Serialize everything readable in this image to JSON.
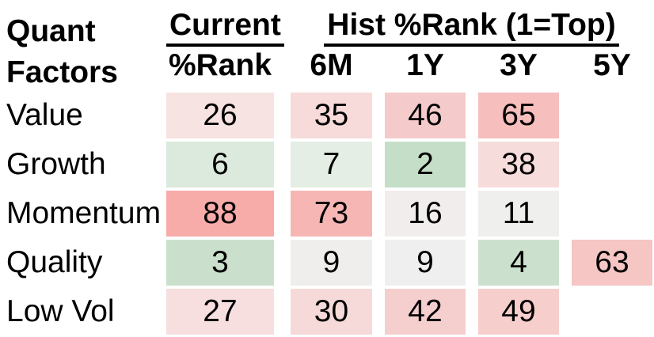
{
  "table": {
    "corner_lines": [
      "Quant",
      "Factors"
    ],
    "current_group_label": "Current",
    "hist_group_label": "Hist %Rank (1=Top)",
    "columns": [
      {
        "id": "current-rank",
        "label": "%Rank"
      },
      {
        "id": "6m",
        "label": "6M"
      },
      {
        "id": "1y",
        "label": "1Y"
      },
      {
        "id": "3y",
        "label": "3Y"
      },
      {
        "id": "5y",
        "label": "5Y"
      }
    ],
    "rows": [
      {
        "id": "value",
        "label": "Value",
        "cells": [
          {
            "value": 26,
            "color": "#F7E3E1"
          },
          {
            "value": 35,
            "color": "#F6DBDA"
          },
          {
            "value": 46,
            "color": "#F4CBCA"
          },
          {
            "value": 65,
            "color": "#F6BEBC"
          },
          null
        ]
      },
      {
        "id": "growth",
        "label": "Growth",
        "cells": [
          {
            "value": 6,
            "color": "#DCEADD"
          },
          {
            "value": 7,
            "color": "#E4EEE4"
          },
          {
            "value": 2,
            "color": "#C5DEC8"
          },
          {
            "value": 38,
            "color": "#F6DCDB"
          },
          null
        ]
      },
      {
        "id": "momentum",
        "label": "Momentum",
        "cells": [
          {
            "value": 88,
            "color": "#F7ACA9"
          },
          {
            "value": 73,
            "color": "#F6B7B4"
          },
          {
            "value": 16,
            "color": "#F1EDEC"
          },
          {
            "value": 11,
            "color": "#EFEFED"
          },
          null
        ]
      },
      {
        "id": "quality",
        "label": "Quality",
        "cells": [
          {
            "value": 3,
            "color": "#CAE0CC"
          },
          {
            "value": 9,
            "color": "#EFEEED"
          },
          {
            "value": 9,
            "color": "#F0EFEF"
          },
          {
            "value": 4,
            "color": "#CBE1CE"
          },
          {
            "value": 63,
            "color": "#F5C6C4"
          }
        ]
      },
      {
        "id": "low-vol",
        "label": "Low Vol",
        "cells": [
          {
            "value": 27,
            "color": "#F6DFDE"
          },
          {
            "value": 30,
            "color": "#F5DAD9"
          },
          {
            "value": 42,
            "color": "#F4CFCE"
          },
          {
            "value": 49,
            "color": "#F6CECB"
          },
          null
        ]
      }
    ]
  },
  "heat_colors": {
    "low_green": "#C5DEC8",
    "mid_neutral": "#F0EFEF",
    "high_red": "#F7ACA9"
  },
  "chart_data": {
    "type": "heatmap",
    "title": "Quant Factors",
    "column_groups": [
      "Current",
      "Hist %Rank (1=Top)"
    ],
    "columns": [
      "Current %Rank",
      "6M",
      "1Y",
      "3Y",
      "5Y"
    ],
    "rows": [
      "Value",
      "Growth",
      "Momentum",
      "Quality",
      "Low Vol"
    ],
    "values": [
      [
        26,
        35,
        46,
        65,
        null
      ],
      [
        6,
        7,
        2,
        38,
        null
      ],
      [
        88,
        73,
        16,
        11,
        null
      ],
      [
        3,
        9,
        9,
        4,
        63
      ],
      [
        27,
        30,
        42,
        49,
        null
      ]
    ],
    "scale_note": "1=Top",
    "color_scale": "low values green, mid ~10-20 neutral gray-white, high values red/pink",
    "legend_position": "none",
    "grid": false
  }
}
